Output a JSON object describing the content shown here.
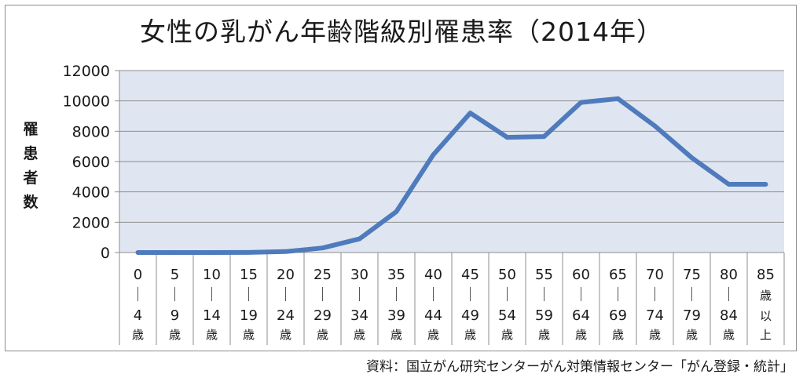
{
  "chart_data": {
    "type": "line",
    "title": "女性の乳がん年齢階級別罹患率（2014年）",
    "ylabel": "罹患者数",
    "ylim": [
      0,
      12000
    ],
    "yticks": [
      "12000",
      "10000",
      "8000",
      "6000",
      "4000",
      "2000",
      "0"
    ],
    "ytick_values": [
      12000,
      10000,
      8000,
      6000,
      4000,
      2000,
      0
    ],
    "grid": true,
    "categories": [
      {
        "top": "0",
        "sep": "｜",
        "bottom": "4",
        "unit": "歳"
      },
      {
        "top": "5",
        "sep": "｜",
        "bottom": "9",
        "unit": "歳"
      },
      {
        "top": "10",
        "sep": "｜",
        "bottom": "14",
        "unit": "歳"
      },
      {
        "top": "15",
        "sep": "｜",
        "bottom": "19",
        "unit": "歳"
      },
      {
        "top": "20",
        "sep": "｜",
        "bottom": "24",
        "unit": "歳"
      },
      {
        "top": "25",
        "sep": "｜",
        "bottom": "29",
        "unit": "歳"
      },
      {
        "top": "30",
        "sep": "｜",
        "bottom": "34",
        "unit": "歳"
      },
      {
        "top": "35",
        "sep": "｜",
        "bottom": "39",
        "unit": "歳"
      },
      {
        "top": "40",
        "sep": "｜",
        "bottom": "44",
        "unit": "歳"
      },
      {
        "top": "45",
        "sep": "｜",
        "bottom": "49",
        "unit": "歳"
      },
      {
        "top": "50",
        "sep": "｜",
        "bottom": "54",
        "unit": "歳"
      },
      {
        "top": "55",
        "sep": "｜",
        "bottom": "59",
        "unit": "歳"
      },
      {
        "top": "60",
        "sep": "｜",
        "bottom": "64",
        "unit": "歳"
      },
      {
        "top": "65",
        "sep": "｜",
        "bottom": "69",
        "unit": "歳"
      },
      {
        "top": "70",
        "sep": "｜",
        "bottom": "74",
        "unit": "歳"
      },
      {
        "top": "75",
        "sep": "｜",
        "bottom": "79",
        "unit": "歳"
      },
      {
        "top": "80",
        "sep": "｜",
        "bottom": "84",
        "unit": "歳"
      },
      {
        "top": "85",
        "sep": "歳",
        "bottom": "以",
        "unit": "上"
      }
    ],
    "series": [
      {
        "values": [
          0,
          0,
          0,
          5,
          60,
          300,
          900,
          2700,
          6450,
          9200,
          7600,
          7650,
          9900,
          10150,
          8350,
          6250,
          4500,
          4500
        ]
      }
    ],
    "line_color": "#4f7bbd",
    "plot_bg": "#dfe6f1"
  },
  "source": "資料：国立がん研究センターがん対策情報センター「がん登録・統計」"
}
